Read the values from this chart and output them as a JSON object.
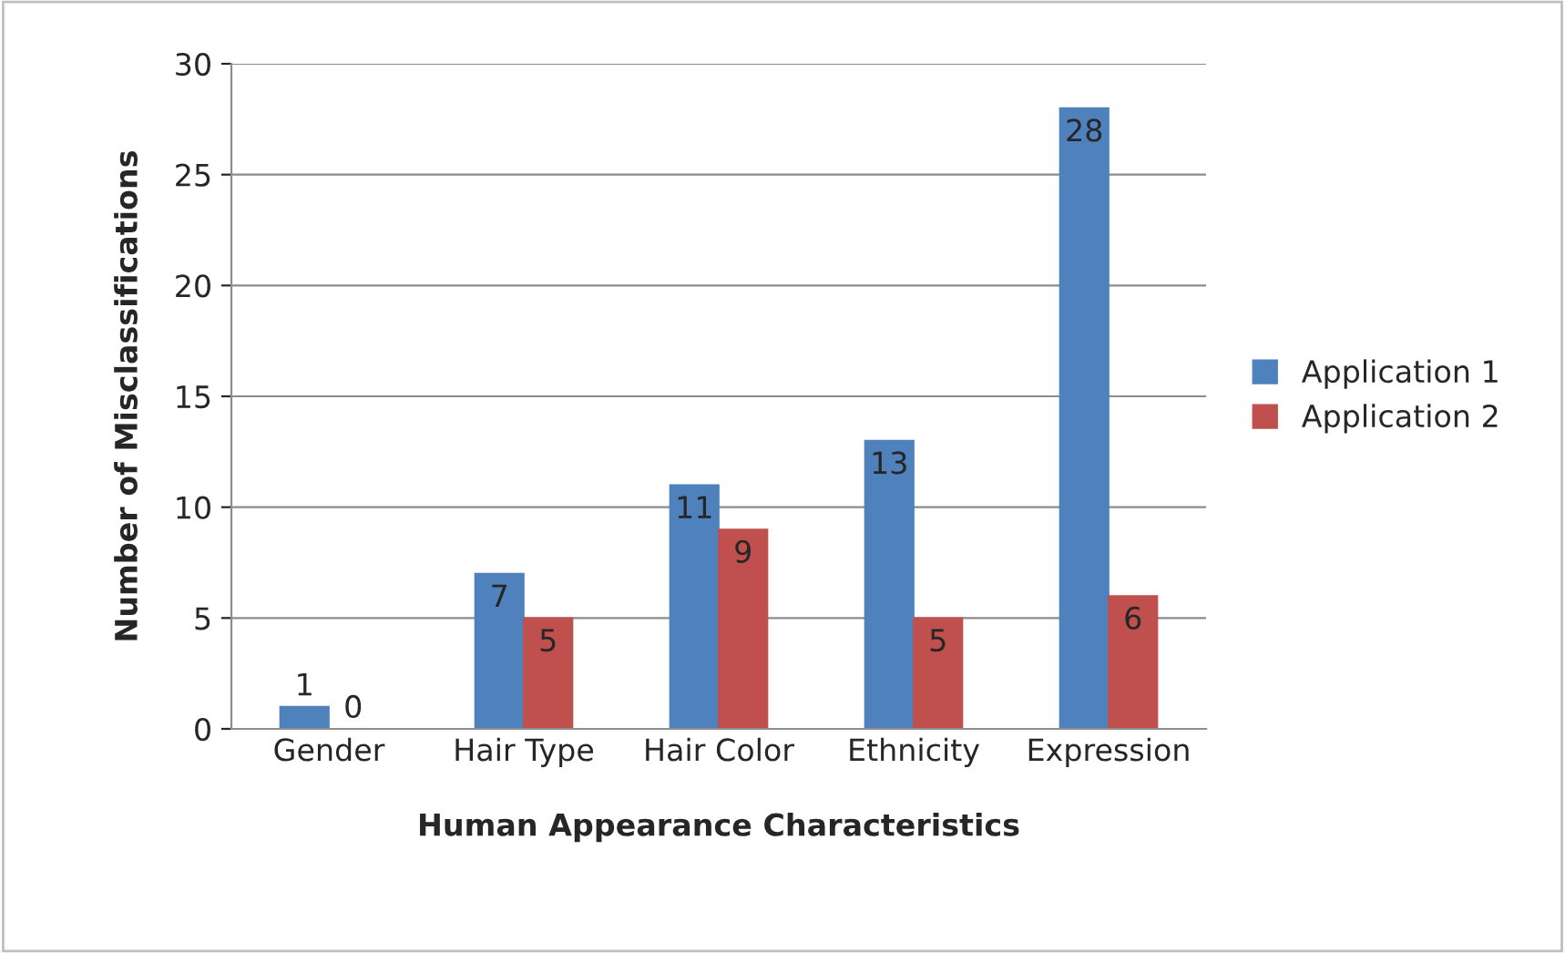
{
  "chart_data": {
    "type": "bar",
    "xlabel": "Human Appearance Characteristics",
    "ylabel": "Number of Misclassifications",
    "categories": [
      "Gender",
      "Hair Type",
      "Hair Color",
      "Ethnicity",
      "Expression"
    ],
    "series": [
      {
        "name": "Application 1",
        "color": "#4f81bd",
        "values": [
          1,
          7,
          11,
          13,
          28
        ]
      },
      {
        "name": "Application 2",
        "color": "#c0504d",
        "values": [
          0,
          5,
          9,
          5,
          6
        ]
      }
    ],
    "ylim": [
      0,
      30
    ],
    "yticks": [
      0,
      5,
      10,
      15,
      20,
      25,
      30
    ],
    "grid": "y",
    "legend": "right",
    "data_labels": true
  }
}
